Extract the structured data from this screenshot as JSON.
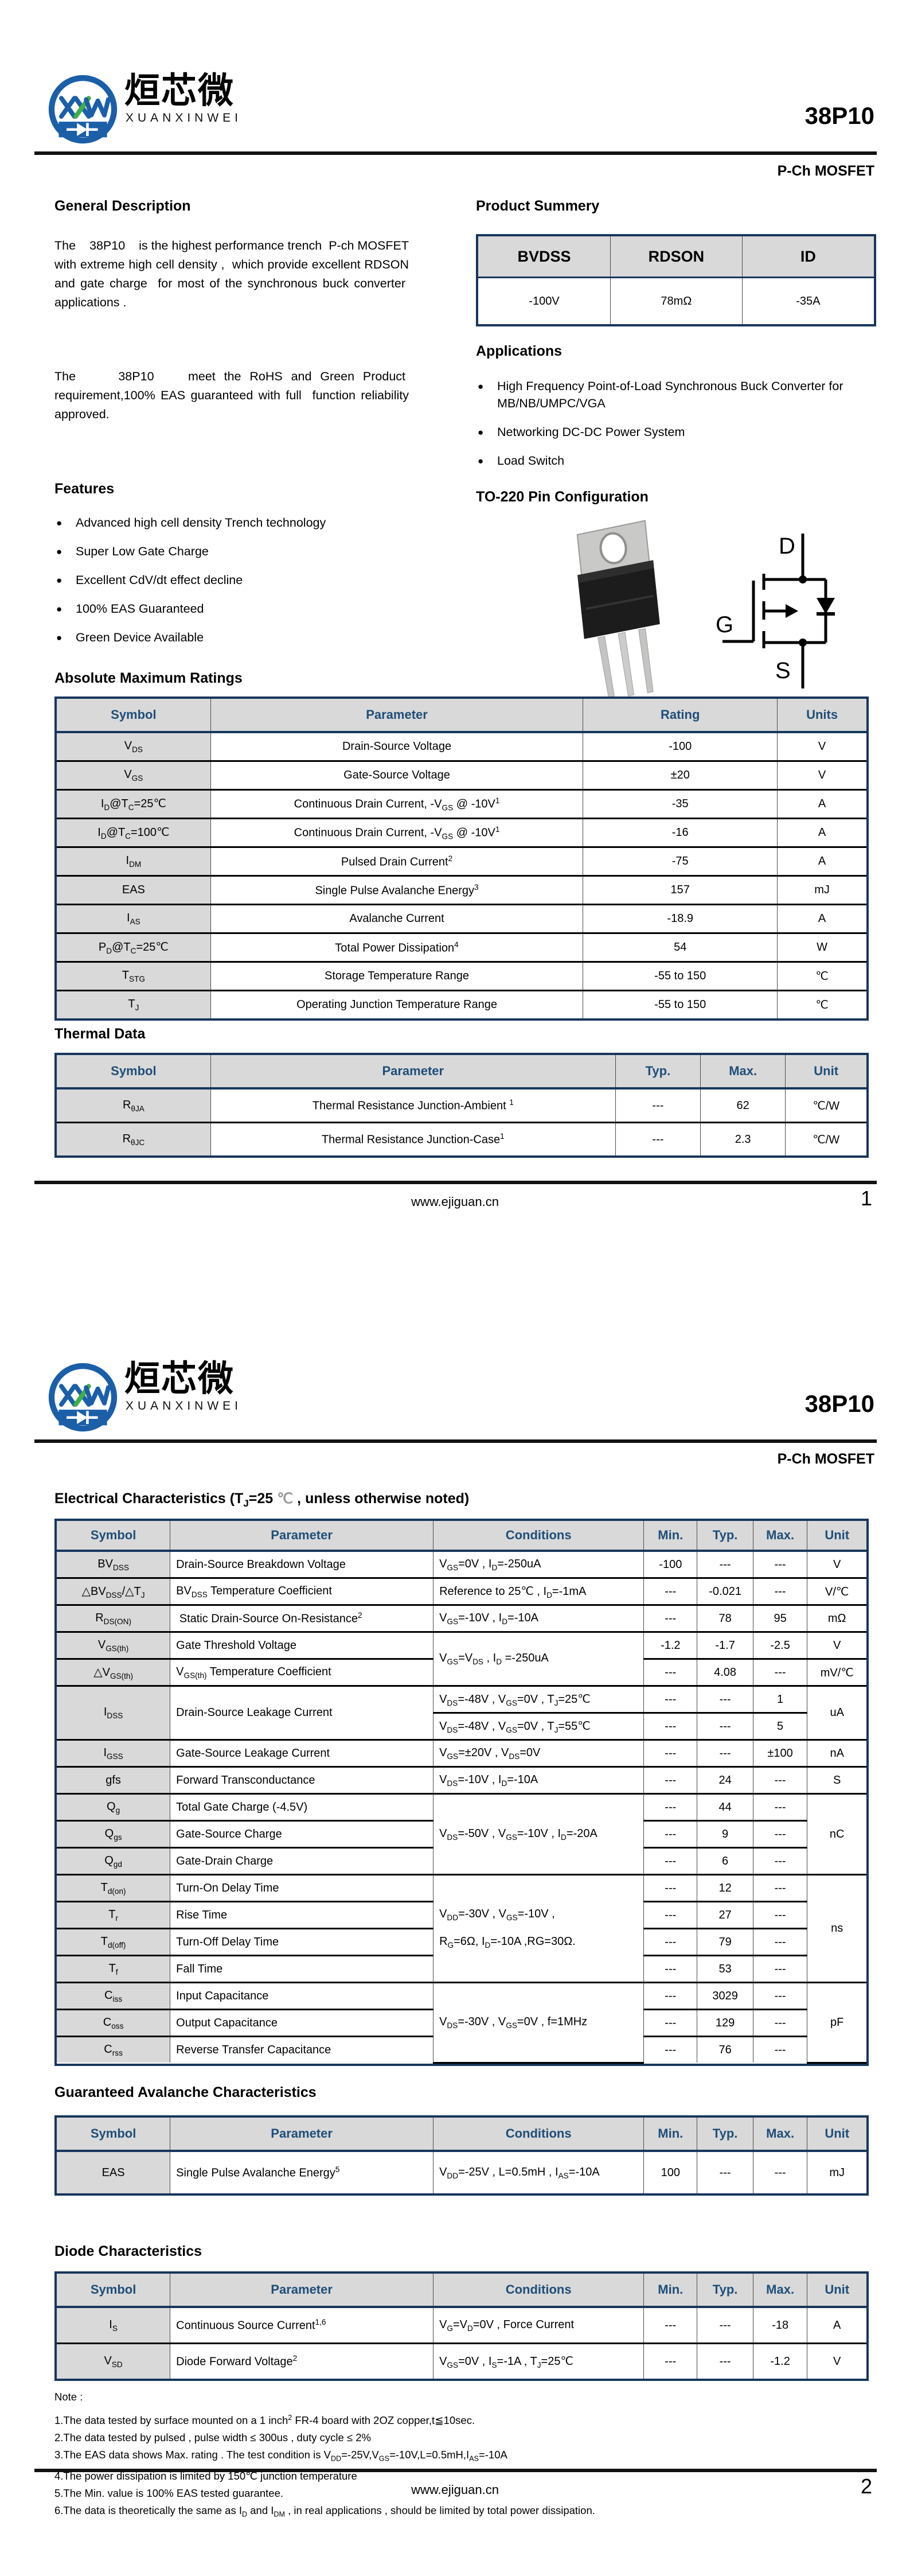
{
  "brand": {
    "logo_monogram": "XXW",
    "logo_text_cn": "烜芯微",
    "logo_text_en": "XUANXINWEI",
    "part_number": "38P10",
    "subtitle": "P-Ch MOSFET",
    "colors": {
      "navy": "#17365d",
      "header_text": "#1f4e79",
      "logo_blue": "#1b5fa8",
      "logo_green": "#3fae49",
      "header_gray": "#d9d9d9"
    }
  },
  "footer": {
    "url": "www.ejiguan.cn",
    "page1": "1",
    "page2": "2"
  },
  "page1": {
    "general_description": {
      "title": "General Description",
      "para1": "The    38P10    is the highest performance trench  P-ch MOSFET with extreme high cell density ,  which provide excellent RDSON and gate charge  for most of the synchronous buck converter  applications .",
      "para2": "The     38P10    meet the RoHS and Green Product  requirement,100% EAS guaranteed with full  function reliability approved."
    },
    "features": {
      "title": "Features",
      "items": [
        "Advanced high cell density Trench technology",
        "Super Low Gate Charge",
        "Excellent CdV/dt effect decline",
        "100% EAS Guaranteed",
        "Green Device Available"
      ]
    },
    "product_summary": {
      "title": "Product Summery",
      "table": {
        "widths": [
          "33.4%",
          "33.3%",
          "33.3%"
        ],
        "head": [
          "BVDSS",
          "RDSON",
          "ID"
        ],
        "rows": [
          [
            "-100V",
            "78mΩ",
            "-35A"
          ]
        ]
      }
    },
    "applications": {
      "title": "Applications",
      "items": [
        "High Frequency Point-of-Load Synchronous Buck Converter for MB/NB/UMPC/VGA",
        "Networking DC-DC Power System",
        "Load Switch"
      ]
    },
    "pin_configuration": {
      "title": "TO-220 Pin Configuration",
      "pins": {
        "d": "D",
        "g": "G",
        "s": "S"
      }
    },
    "absolute_maximum_ratings": {
      "title": "Absolute Maximum Ratings",
      "table": {
        "widths": [
          "19%",
          "46%",
          "24%",
          "11%"
        ],
        "head": [
          "Symbol",
          "Parameter",
          "Rating",
          "Units"
        ],
        "rows": [
          [
            {
              "h": "V<sub>DS</sub>",
              "cls": "S"
            },
            "Drain-Source Voltage",
            "-100",
            "V"
          ],
          [
            {
              "h": "V<sub>GS</sub>",
              "cls": "S"
            },
            "Gate-Source Voltage",
            "±20",
            "V"
          ],
          [
            {
              "h": "I<sub>D</sub>@T<sub>C</sub>=25℃",
              "cls": "S"
            },
            "Continuous Drain Current, -V<sub>GS</sub> @ -10V<sup>1</sup>",
            "-35",
            "A"
          ],
          [
            {
              "h": "I<sub>D</sub>@T<sub>C</sub>=100℃",
              "cls": "S"
            },
            "Continuous Drain Current, -V<sub>GS</sub> @ -10V<sup>1</sup>",
            "-16",
            "A"
          ],
          [
            {
              "h": "I<sub>DM</sub>",
              "cls": "S"
            },
            "Pulsed Drain Current<sup>2</sup>",
            "-75",
            "A"
          ],
          [
            {
              "h": "EAS",
              "cls": "S"
            },
            "Single Pulse Avalanche Energy<sup>3</sup>",
            "157",
            "mJ"
          ],
          [
            {
              "h": "I<sub>AS</sub>",
              "cls": "S"
            },
            "Avalanche Current",
            "-18.9",
            "A"
          ],
          [
            {
              "h": "P<sub>D</sub>@T<sub>C</sub>=25℃",
              "cls": "S"
            },
            "Total Power Dissipation<sup>4</sup>",
            "54",
            "W"
          ],
          [
            {
              "h": "T<sub>STG</sub>",
              "cls": "S"
            },
            "Storage Temperature Range",
            "-55 to 150",
            "℃"
          ],
          [
            {
              "h": "T<sub>J</sub>",
              "cls": "S"
            },
            "Operating Junction Temperature Range",
            "-55 to 150",
            "℃"
          ]
        ]
      }
    },
    "thermal_data": {
      "title": "Thermal Data",
      "table": {
        "widths": [
          "19%",
          "50%",
          "10.5%",
          "10.5%",
          "10%"
        ],
        "head": [
          "Symbol",
          "Parameter",
          "Typ.",
          "Max.",
          "Unit"
        ],
        "rows": [
          [
            {
              "h": "R<sub>θJA</sub>",
              "cls": "S"
            },
            "Thermal Resistance Junction-Ambient <sup>1</sup>",
            "---",
            "62",
            "℃/W"
          ],
          [
            {
              "h": "R<sub>θJC</sub>",
              "cls": "S"
            },
            "Thermal Resistance Junction-Case<sup>1</sup>",
            "---",
            "2.3",
            "℃/W"
          ]
        ]
      }
    }
  },
  "page2": {
    "electrical_characteristics": {
      "title_html": "Electrical Characteristics (T<sub>J</sub>=25 <span class=\"faint\">℃</span> , unless otherwise noted)",
      "table": {
        "widths": [
          "14%",
          "32.5%",
          "26%",
          "6.6%",
          "6.9%",
          "6.7%",
          "7.3%"
        ],
        "head": [
          "Symbol",
          "Parameter",
          "Conditions",
          "Min.",
          "Typ.",
          "Max.",
          "Unit"
        ],
        "rows": [
          [
            {
              "h": "BV<sub>DSS</sub>",
              "cls": "S"
            },
            {
              "h": "Drain-Source Breakdown Voltage",
              "cls": "L"
            },
            {
              "h": "V<sub>GS</sub>=0V , I<sub>D</sub>=-250uA",
              "cls": "L"
            },
            "-100",
            "---",
            "---",
            "V"
          ],
          [
            {
              "h": "△BV<sub>DSS</sub>/△T<sub>J</sub>",
              "cls": "S"
            },
            {
              "h": "BV<sub>DSS</sub> Temperature Coefficient",
              "cls": "L"
            },
            {
              "h": "Reference to 25℃ , I<sub>D</sub>=-1mA",
              "cls": "L"
            },
            "---",
            "-0.021",
            "---",
            "V/℃"
          ],
          [
            {
              "h": "R<sub>DS(ON)</sub>",
              "cls": "S"
            },
            {
              "h": " Static Drain-Source On-Resistance<sup>2</sup>",
              "cls": "L"
            },
            {
              "h": "V<sub>GS</sub>=-10V , I<sub>D</sub>=-10A",
              "cls": "L"
            },
            "---",
            "78",
            "95",
            "mΩ"
          ],
          [
            {
              "h": "V<sub>GS(th)</sub>",
              "cls": "S"
            },
            {
              "h": "Gate Threshold Voltage",
              "cls": "L"
            },
            {
              "h": "V<sub>GS</sub>=V<sub>DS</sub> , I<sub>D</sub> =-250uA",
              "cls": "L",
              "rs": 2
            },
            "-1.2",
            "-1.7",
            "-2.5",
            "V"
          ],
          [
            {
              "h": "△V<sub>GS(th)</sub>",
              "cls": "S"
            },
            {
              "h": "V<sub>GS(th)</sub> Temperature Coefficient",
              "cls": "L"
            },
            "---",
            "4.08",
            "---",
            "mV/℃"
          ],
          [
            {
              "h": "I<sub>DSS</sub>",
              "cls": "S",
              "rs": 2
            },
            {
              "h": "Drain-Source Leakage Current",
              "cls": "L",
              "rs": 2
            },
            {
              "h": "V<sub>DS</sub>=-48V , V<sub>GS</sub>=0V , T<sub>J</sub>=25℃",
              "cls": "L"
            },
            "---",
            "---",
            "1",
            {
              "h": "uA",
              "rs": 2
            }
          ],
          [
            {
              "h": "V<sub>DS</sub>=-48V , V<sub>GS</sub>=0V , T<sub>J</sub>=55℃",
              "cls": "L"
            },
            "---",
            "---",
            "5"
          ],
          [
            {
              "h": "I<sub>GSS</sub>",
              "cls": "S"
            },
            {
              "h": "Gate-Source Leakage Current",
              "cls": "L"
            },
            {
              "h": "V<sub>GS</sub>=±20V , V<sub>DS</sub>=0V",
              "cls": "L"
            },
            "---",
            "---",
            "±100",
            "nA"
          ],
          [
            {
              "h": "gfs",
              "cls": "S"
            },
            {
              "h": "Forward Transconductance",
              "cls": "L"
            },
            {
              "h": "V<sub>DS</sub>=-10V , I<sub>D</sub>=-10A",
              "cls": "L"
            },
            "---",
            "24",
            "---",
            "S"
          ],
          [
            {
              "h": "Q<sub>g</sub>",
              "cls": "S"
            },
            {
              "h": "Total Gate Charge (-4.5V)",
              "cls": "L"
            },
            {
              "h": "V<sub>DS</sub>=-50V , V<sub>GS</sub>=-10V , I<sub>D</sub>=-20A",
              "cls": "L",
              "rs": 3
            },
            "---",
            "44",
            "---",
            {
              "h": "nC",
              "rs": 3
            }
          ],
          [
            {
              "h": "Q<sub>gs</sub>",
              "cls": "S"
            },
            {
              "h": "Gate-Source Charge",
              "cls": "L"
            },
            "---",
            "9",
            "---"
          ],
          [
            {
              "h": "Q<sub>gd</sub>",
              "cls": "S"
            },
            {
              "h": "Gate-Drain Charge",
              "cls": "L"
            },
            "---",
            "6",
            "---"
          ],
          [
            {
              "h": "T<sub>d(on)</sub>",
              "cls": "S"
            },
            {
              "h": "Turn-On Delay Time",
              "cls": "L"
            },
            {
              "h": "V<sub>DD</sub>=-30V , V<sub>GS</sub>=-10V ,<br><br>R<sub>G</sub>=6Ω, I<sub>D</sub>=-10A ,RG=30Ω.",
              "cls": "L",
              "rs": 4
            },
            "---",
            "12",
            "---",
            {
              "h": "ns",
              "rs": 4
            }
          ],
          [
            {
              "h": "T<sub>r</sub>",
              "cls": "S"
            },
            {
              "h": "Rise Time",
              "cls": "L"
            },
            "---",
            "27",
            "---"
          ],
          [
            {
              "h": "T<sub>d(off)</sub>",
              "cls": "S"
            },
            {
              "h": "Turn-Off Delay Time",
              "cls": "L"
            },
            "---",
            "79",
            "---"
          ],
          [
            {
              "h": "T<sub>f</sub>",
              "cls": "S"
            },
            {
              "h": "Fall Time",
              "cls": "L"
            },
            "---",
            "53",
            "---"
          ],
          [
            {
              "h": "C<sub>iss</sub>",
              "cls": "S"
            },
            {
              "h": "Input Capacitance",
              "cls": "L"
            },
            {
              "h": "V<sub>DS</sub>=-30V , V<sub>GS</sub>=0V , f=1MHz",
              "cls": "L",
              "rs": 3
            },
            "---",
            "3029",
            "---",
            {
              "h": "pF",
              "rs": 3
            }
          ],
          [
            {
              "h": "C<sub>oss</sub>",
              "cls": "S"
            },
            {
              "h": "Output Capacitance",
              "cls": "L"
            },
            "---",
            "129",
            "---"
          ],
          [
            {
              "h": "C<sub>rss</sub>",
              "cls": "S"
            },
            {
              "h": "Reverse Transfer Capacitance",
              "cls": "L"
            },
            "---",
            "76",
            "---"
          ]
        ]
      }
    },
    "guaranteed_avalanche": {
      "title": "Guaranteed Avalanche Characteristics",
      "table": {
        "widths": [
          "14%",
          "32.5%",
          "26%",
          "6.6%",
          "6.9%",
          "6.7%",
          "7.3%"
        ],
        "head": [
          "Symbol",
          "Parameter",
          "Conditions",
          "Min.",
          "Typ.",
          "Max.",
          "Unit"
        ],
        "rows": [
          [
            {
              "h": "EAS",
              "cls": "S"
            },
            {
              "h": "Single Pulse Avalanche Energy<sup>5</sup>",
              "cls": "L"
            },
            {
              "h": "V<sub>DD</sub>=-25V , L=0.5mH , I<sub>AS</sub>=-10A",
              "cls": "L"
            },
            "100",
            "---",
            "---",
            "mJ"
          ]
        ]
      }
    },
    "diode_characteristics": {
      "title": "Diode Characteristics",
      "table": {
        "widths": [
          "14%",
          "32.5%",
          "26%",
          "6.6%",
          "6.9%",
          "6.7%",
          "7.3%"
        ],
        "head": [
          "Symbol",
          "Parameter",
          "Conditions",
          "Min.",
          "Typ.",
          "Max.",
          "Unit"
        ],
        "rows": [
          [
            {
              "h": "I<sub>S</sub>",
              "cls": "S"
            },
            {
              "h": "Continuous Source Current<sup>1,6</sup>",
              "cls": "L"
            },
            {
              "h": "V<sub>G</sub>=V<sub>D</sub>=0V , Force Current",
              "cls": "L"
            },
            "---",
            "---",
            "-18",
            "A"
          ],
          [
            {
              "h": "V<sub>SD</sub>",
              "cls": "S"
            },
            {
              "h": "Diode Forward Voltage<sup>2</sup>",
              "cls": "L"
            },
            {
              "h": "V<sub>GS</sub>=0V , I<sub>S</sub>=-1A , T<sub>J</sub>=25℃",
              "cls": "L"
            },
            "---",
            "---",
            "-1.2",
            "V"
          ]
        ]
      }
    },
    "notes": {
      "label": "Note :",
      "items": [
        "1.The data tested by surface mounted on a 1 inch<sup>2</sup> FR-4 board with 2OZ copper,t≦10sec.",
        "2.The data tested by pulsed , pulse width ≤ 300us , duty cycle ≤ 2%",
        "3.The EAS data shows Max. rating . The test condition is V<sub>DD</sub>=-25V,V<sub>GS</sub>=-10V,L=0.5mH,I<sub>AS</sub>=-10A",
        "4.The power dissipation is limited by 150℃  junction temperature",
        "5.The Min. value is 100% EAS tested guarantee.",
        "6.The data is theoretically the same as I<sub>D</sub> and I<sub>DM</sub> , in real applications , should be limited by total power dissipation."
      ]
    }
  }
}
